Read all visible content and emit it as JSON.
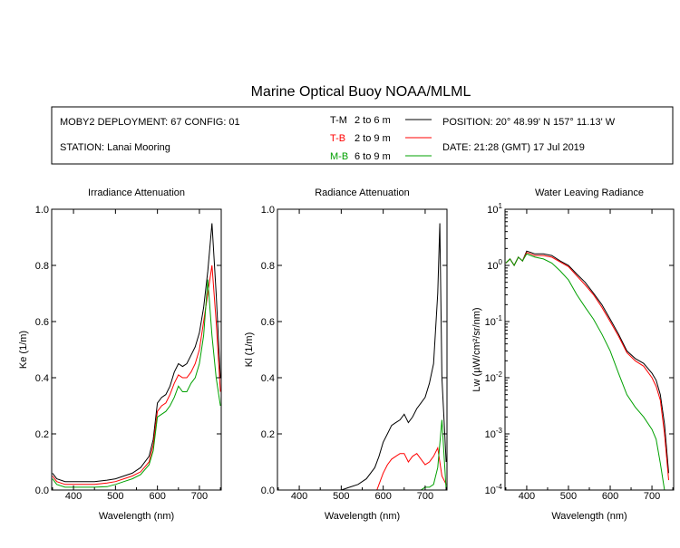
{
  "title": "Marine Optical Buoy NOAA/MLML",
  "info": {
    "deployment": "MOBY2 DEPLOYMENT: 67 CONFIG: 01",
    "station": "STATION: Lanai Mooring",
    "position": "POSITION: 20° 48.99' N   157° 11.13' W",
    "date": "DATE: 21:28 (GMT) 17 Jul 2019"
  },
  "colors": {
    "T-M": "#000000",
    "T-B": "#ff0000",
    "M-B": "#00a000"
  },
  "legend": [
    {
      "key": "T-M",
      "text": "2 to 6  m",
      "color": "#000000"
    },
    {
      "key": "T-B",
      "text": "2 to 9  m",
      "color": "#ff0000"
    },
    {
      "key": "M-B",
      "text": "6 to 9  m",
      "color": "#00a000"
    }
  ],
  "chart_data": [
    {
      "type": "line",
      "title": "Irradiance Attenuation",
      "xlabel": "Wavelength (nm)",
      "ylabel": "Ke  (1/m)",
      "xlim": [
        348,
        752
      ],
      "ylim": [
        0,
        1.0
      ],
      "xticks": [
        "400",
        "500",
        "600",
        "700"
      ],
      "yticks": [
        "0.0",
        "0.2",
        "0.4",
        "0.6",
        "0.8",
        "1.0"
      ],
      "series": [
        {
          "name": "T-M",
          "x": [
            350,
            360,
            380,
            400,
            420,
            450,
            480,
            500,
            520,
            540,
            560,
            580,
            590,
            600,
            610,
            620,
            630,
            640,
            650,
            660,
            670,
            680,
            690,
            700,
            710,
            720,
            730,
            740,
            750
          ],
          "y": [
            0.06,
            0.04,
            0.03,
            0.03,
            0.03,
            0.03,
            0.035,
            0.04,
            0.05,
            0.06,
            0.08,
            0.12,
            0.18,
            0.31,
            0.33,
            0.34,
            0.37,
            0.42,
            0.45,
            0.44,
            0.45,
            0.48,
            0.51,
            0.56,
            0.65,
            0.78,
            0.95,
            0.7,
            0.4
          ]
        },
        {
          "name": "T-B",
          "x": [
            350,
            360,
            380,
            400,
            420,
            450,
            480,
            500,
            520,
            540,
            560,
            580,
            590,
            600,
            610,
            620,
            630,
            640,
            650,
            660,
            670,
            680,
            690,
            700,
            710,
            720,
            730,
            740,
            750
          ],
          "y": [
            0.05,
            0.03,
            0.02,
            0.02,
            0.02,
            0.02,
            0.025,
            0.03,
            0.04,
            0.05,
            0.065,
            0.1,
            0.16,
            0.28,
            0.3,
            0.31,
            0.34,
            0.38,
            0.41,
            0.4,
            0.4,
            0.42,
            0.45,
            0.5,
            0.6,
            0.7,
            0.8,
            0.6,
            0.35
          ]
        },
        {
          "name": "M-B",
          "x": [
            350,
            360,
            380,
            400,
            420,
            450,
            480,
            500,
            520,
            540,
            560,
            580,
            590,
            600,
            610,
            620,
            630,
            640,
            650,
            660,
            670,
            680,
            690,
            700,
            710,
            720,
            730,
            740,
            750
          ],
          "y": [
            0.04,
            0.02,
            0.01,
            0.01,
            0.01,
            0.01,
            0.012,
            0.02,
            0.03,
            0.04,
            0.055,
            0.09,
            0.14,
            0.26,
            0.27,
            0.28,
            0.3,
            0.33,
            0.37,
            0.35,
            0.35,
            0.38,
            0.4,
            0.45,
            0.55,
            0.75,
            0.55,
            0.4,
            0.3
          ]
        }
      ]
    },
    {
      "type": "line",
      "title": "Radiance Attenuation",
      "xlabel": "Wavelength (nm)",
      "ylabel": "Kl  (1/m)",
      "xlim": [
        348,
        752
      ],
      "ylim": [
        0,
        1.0
      ],
      "xticks": [
        "400",
        "500",
        "600",
        "700"
      ],
      "yticks": [
        "0.0",
        "0.2",
        "0.4",
        "0.6",
        "0.8",
        "1.0"
      ],
      "series": [
        {
          "name": "T-M",
          "x": [
            500,
            520,
            540,
            560,
            580,
            590,
            600,
            610,
            620,
            630,
            640,
            650,
            660,
            670,
            680,
            690,
            700,
            710,
            720,
            730,
            735,
            740,
            750
          ],
          "y": [
            0.0,
            0.01,
            0.02,
            0.04,
            0.08,
            0.12,
            0.17,
            0.2,
            0.23,
            0.24,
            0.25,
            0.27,
            0.24,
            0.26,
            0.29,
            0.31,
            0.33,
            0.38,
            0.45,
            0.7,
            0.95,
            0.4,
            0.1
          ]
        },
        {
          "name": "T-B",
          "x": [
            585,
            590,
            600,
            610,
            620,
            630,
            640,
            650,
            660,
            670,
            680,
            690,
            700,
            710,
            720,
            730,
            740,
            750
          ],
          "y": [
            0.0,
            0.02,
            0.06,
            0.09,
            0.11,
            0.12,
            0.13,
            0.13,
            0.1,
            0.12,
            0.13,
            0.11,
            0.09,
            0.1,
            0.12,
            0.15,
            0.05,
            0.02
          ]
        },
        {
          "name": "M-B",
          "x": [
            690,
            700,
            710,
            720,
            730,
            740,
            750
          ],
          "y": [
            0.0,
            0.01,
            0.01,
            0.02,
            0.08,
            0.25,
            0.0
          ]
        }
      ]
    },
    {
      "type": "line",
      "title": "Water Leaving Radiance",
      "xlabel": "Wavelength (nm)",
      "ylabel": "Lw  (µW/cm²/sr/nm)",
      "xlim": [
        348,
        752
      ],
      "ylim": [
        0.0001,
        10
      ],
      "yscale": "log",
      "xticks": [
        "400",
        "500",
        "600",
        "700"
      ],
      "yticks": [
        "10⁻⁴",
        "10⁻³",
        "10⁻²",
        "10⁻¹",
        "10⁰",
        "10¹"
      ],
      "series": [
        {
          "name": "T-M",
          "x": [
            350,
            360,
            370,
            380,
            390,
            400,
            410,
            420,
            440,
            460,
            480,
            500,
            520,
            540,
            560,
            580,
            600,
            620,
            640,
            660,
            680,
            700,
            710,
            720,
            730,
            740
          ],
          "y": [
            1.1,
            1.3,
            1.0,
            1.4,
            1.2,
            1.8,
            1.7,
            1.6,
            1.6,
            1.5,
            1.2,
            1.0,
            0.7,
            0.5,
            0.32,
            0.2,
            0.11,
            0.06,
            0.03,
            0.022,
            0.018,
            0.012,
            0.009,
            0.005,
            0.0015,
            0.0002
          ]
        },
        {
          "name": "T-B",
          "x": [
            350,
            360,
            370,
            380,
            390,
            400,
            410,
            420,
            440,
            460,
            480,
            500,
            520,
            540,
            560,
            580,
            600,
            620,
            640,
            660,
            680,
            700,
            710,
            720,
            730,
            740
          ],
          "y": [
            1.1,
            1.3,
            1.0,
            1.4,
            1.2,
            1.7,
            1.6,
            1.5,
            1.5,
            1.4,
            1.15,
            0.95,
            0.65,
            0.45,
            0.3,
            0.18,
            0.1,
            0.055,
            0.028,
            0.02,
            0.016,
            0.01,
            0.007,
            0.004,
            0.001,
            0.00015
          ]
        },
        {
          "name": "M-B",
          "x": [
            350,
            360,
            370,
            380,
            390,
            400,
            410,
            420,
            440,
            460,
            480,
            500,
            520,
            540,
            560,
            580,
            600,
            620,
            640,
            660,
            680,
            700,
            710,
            720,
            730
          ],
          "y": [
            1.1,
            1.3,
            1.0,
            1.4,
            1.2,
            1.6,
            1.5,
            1.4,
            1.3,
            1.1,
            0.8,
            0.55,
            0.3,
            0.18,
            0.11,
            0.06,
            0.03,
            0.012,
            0.005,
            0.003,
            0.002,
            0.0012,
            0.0008,
            0.0003,
            0.0001
          ]
        }
      ]
    }
  ]
}
